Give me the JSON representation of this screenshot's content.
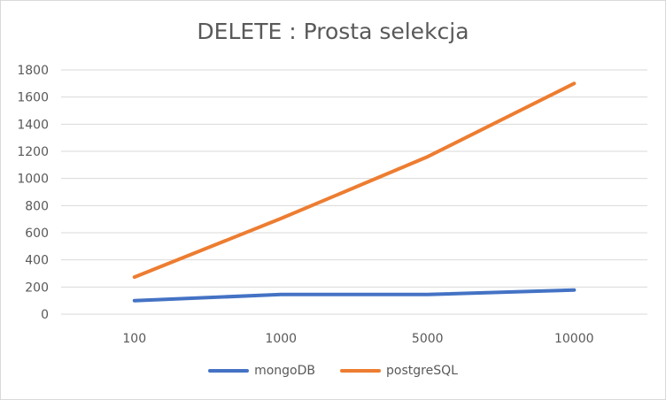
{
  "chart_data": {
    "type": "line",
    "title": "DELETE : Prosta selekcja",
    "categories": [
      "100",
      "1000",
      "5000",
      "10000"
    ],
    "series": [
      {
        "name": "mongoDB",
        "values": [
          100,
          145,
          145,
          178
        ],
        "color": "#4472c4"
      },
      {
        "name": "postgreSQL",
        "values": [
          273,
          705,
          1160,
          1700
        ],
        "color": "#ed7d31"
      }
    ],
    "ylim": [
      0,
      1800
    ],
    "yticks": [
      0,
      200,
      400,
      600,
      800,
      1000,
      1200,
      1400,
      1600,
      1800
    ],
    "grid": true,
    "legend": "bottom"
  }
}
